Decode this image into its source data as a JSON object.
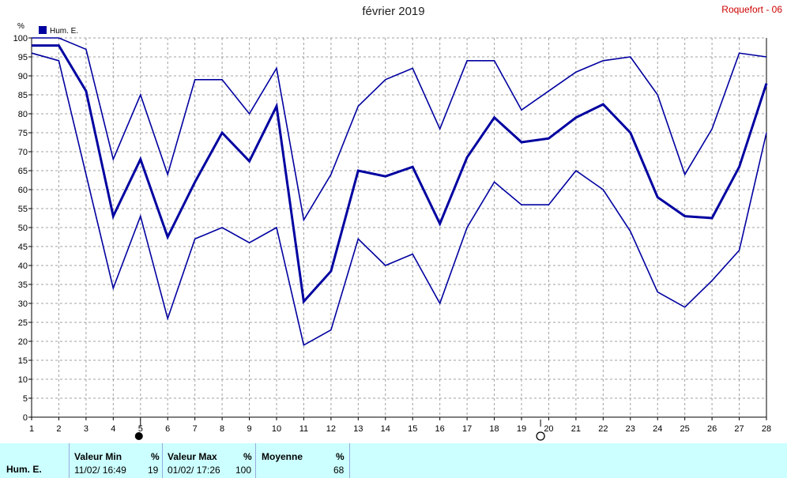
{
  "title": "février 2019",
  "station": "Roquefort - 06",
  "chart_data": {
    "type": "line",
    "ylabel": "%",
    "ylim": [
      0,
      100
    ],
    "yticks": [
      0,
      5,
      10,
      15,
      20,
      25,
      30,
      35,
      40,
      45,
      50,
      55,
      60,
      65,
      70,
      75,
      80,
      85,
      90,
      95,
      100
    ],
    "xlim": [
      1,
      28
    ],
    "x": [
      1,
      2,
      3,
      4,
      5,
      6,
      7,
      8,
      9,
      10,
      11,
      12,
      13,
      14,
      15,
      16,
      17,
      18,
      19,
      20,
      21,
      22,
      23,
      24,
      25,
      26,
      27,
      28
    ],
    "legend": {
      "label": "Hum. E.",
      "color": "#0000a0",
      "position": "top-left"
    },
    "grid": true,
    "series": [
      {
        "role": "max",
        "values": [
          100,
          100,
          97,
          68,
          85,
          64,
          89,
          89,
          80,
          92,
          52,
          64,
          82,
          89,
          92,
          76,
          94,
          94,
          81,
          86,
          91,
          94,
          95,
          85,
          64,
          76,
          96,
          95
        ]
      },
      {
        "role": "avg",
        "values": [
          98,
          98,
          86,
          53,
          68,
          47.5,
          62,
          75,
          67.5,
          82,
          30.5,
          38.5,
          65,
          63.5,
          66,
          51,
          68.5,
          79,
          72.5,
          73.5,
          79,
          82.5,
          75,
          58,
          53,
          52.5,
          66,
          88
        ]
      },
      {
        "role": "min",
        "values": [
          96,
          94,
          64,
          34,
          53,
          26,
          47,
          50,
          46,
          50,
          19,
          23,
          47,
          40,
          43,
          30,
          50,
          62,
          56,
          56,
          65,
          60,
          49,
          33,
          29,
          36,
          44,
          75
        ]
      }
    ],
    "moon_phases": [
      {
        "day": 5,
        "phase": "new-moon"
      },
      {
        "day": 19.7,
        "phase": "full-moon"
      }
    ]
  },
  "footer": {
    "series_label": "Hum. E.",
    "min": {
      "header": "Valeur Min",
      "unit": "%",
      "datetime": "11/02/ 16:49",
      "value": "19"
    },
    "max": {
      "header": "Valeur Max",
      "unit": "%",
      "datetime": "01/02/ 17:26",
      "value": "100"
    },
    "avg": {
      "header": "Moyenne",
      "unit": "%",
      "value": "68"
    }
  }
}
